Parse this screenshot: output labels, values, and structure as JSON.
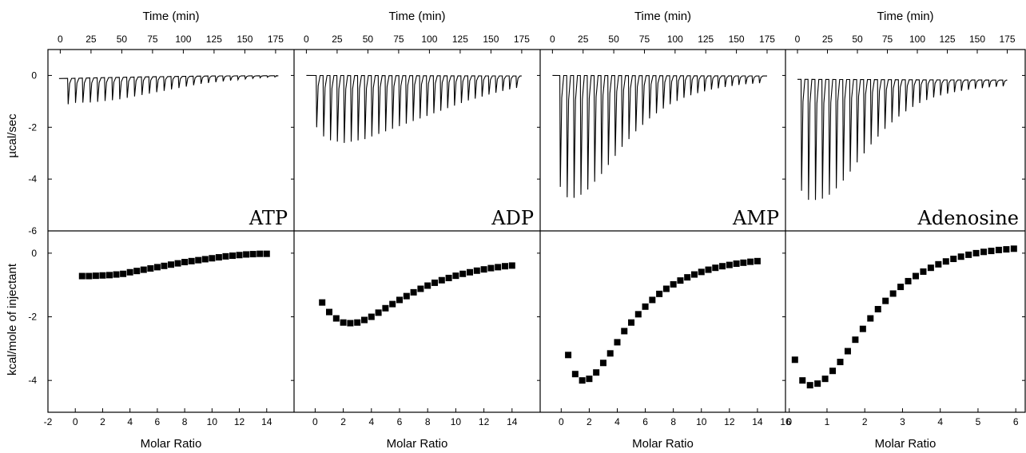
{
  "figure": {
    "top_axis_title": "Time (min)",
    "bottom_axis_title": "Molar Ratio",
    "top_ylabel": "µcal/sec",
    "bottom_ylabel": "kcal/mole of injectant"
  },
  "chart_data": [
    {
      "type": "line",
      "panel": "ATP raw thermogram",
      "label": "ATP",
      "xlabel": "Time (min)",
      "ylabel": "µcal/sec",
      "xlim": [
        -10,
        190
      ],
      "ylim": [
        -6,
        1
      ],
      "x_ticks": [
        0,
        25,
        50,
        75,
        100,
        125,
        150,
        175
      ],
      "x_tick_labels": [
        "0",
        "25",
        "50",
        "75",
        "100",
        "125",
        "150",
        "175"
      ],
      "y_ticks": [
        0,
        -2,
        -4,
        -6
      ],
      "y_tick_labels": [
        "0",
        "-2",
        "-4",
        "-6"
      ],
      "baseline": [
        [
          -1,
          -0.12
        ],
        [
          60,
          -0.06
        ],
        [
          120,
          -0.02
        ],
        [
          175,
          -0.01
        ]
      ],
      "injection_start": 6,
      "injection_interval": 6,
      "peaks": [
        -1.0,
        -0.95,
        -0.95,
        -0.95,
        -0.93,
        -0.9,
        -0.88,
        -0.85,
        -0.8,
        -0.75,
        -0.7,
        -0.65,
        -0.6,
        -0.55,
        -0.5,
        -0.45,
        -0.4,
        -0.35,
        -0.3,
        -0.27,
        -0.24,
        -0.21,
        -0.18,
        -0.15,
        -0.12,
        -0.1,
        -0.08,
        -0.06,
        -0.05
      ]
    },
    {
      "type": "line",
      "panel": "ADP raw thermogram",
      "label": "ADP",
      "xlabel": "Time (min)",
      "xlim": [
        -10,
        190
      ],
      "ylim": [
        -6,
        1
      ],
      "x_ticks": [
        0,
        25,
        50,
        75,
        100,
        125,
        150,
        175
      ],
      "x_tick_labels": [
        "0",
        "25",
        "50",
        "75",
        "100",
        "125",
        "150",
        "175"
      ],
      "baseline": [
        [
          0,
          0
        ],
        [
          175,
          -0.02
        ]
      ],
      "injection_start": 8,
      "injection_interval": 5.6,
      "peaks": [
        -2.0,
        -2.35,
        -2.5,
        -2.55,
        -2.6,
        -2.55,
        -2.5,
        -2.45,
        -2.35,
        -2.25,
        -2.15,
        -2.05,
        -1.95,
        -1.85,
        -1.75,
        -1.65,
        -1.55,
        -1.45,
        -1.35,
        -1.25,
        -1.15,
        -1.05,
        -0.95,
        -0.88,
        -0.8,
        -0.72,
        -0.65,
        -0.58,
        -0.52,
        -0.46
      ]
    },
    {
      "type": "line",
      "panel": "AMP raw thermogram",
      "label": "AMP",
      "xlabel": "Time (min)",
      "xlim": [
        -10,
        190
      ],
      "ylim": [
        -6,
        1
      ],
      "x_ticks": [
        0,
        25,
        50,
        75,
        100,
        125,
        150,
        175
      ],
      "x_tick_labels": [
        "0",
        "25",
        "50",
        "75",
        "100",
        "125",
        "150",
        "175"
      ],
      "baseline": [
        [
          0,
          0
        ],
        [
          175,
          -0.02
        ]
      ],
      "injection_start": 6,
      "injection_interval": 5.6,
      "peaks": [
        -4.3,
        -4.7,
        -4.72,
        -4.6,
        -4.4,
        -4.1,
        -3.8,
        -3.45,
        -3.1,
        -2.75,
        -2.45,
        -2.15,
        -1.9,
        -1.65,
        -1.45,
        -1.27,
        -1.1,
        -0.97,
        -0.85,
        -0.75,
        -0.67,
        -0.6,
        -0.53,
        -0.48,
        -0.43,
        -0.39,
        -0.35,
        -0.32,
        -0.3,
        -0.28
      ]
    },
    {
      "type": "line",
      "panel": "Adenosine raw thermogram",
      "label": "Adenosine",
      "xlabel": "Time (min)",
      "xlim": [
        -10,
        190
      ],
      "ylim": [
        -6,
        1
      ],
      "x_ticks": [
        0,
        25,
        50,
        75,
        100,
        125,
        150,
        175
      ],
      "x_tick_labels": [
        "0",
        "25",
        "50",
        "75",
        "100",
        "125",
        "150",
        "175"
      ],
      "baseline": [
        [
          0,
          -0.15
        ],
        [
          175,
          -0.18
        ]
      ],
      "injection_start": 3,
      "injection_interval": 5.8,
      "peaks": [
        -4.3,
        -4.65,
        -4.65,
        -4.6,
        -4.45,
        -4.2,
        -3.9,
        -3.55,
        -3.2,
        -2.85,
        -2.5,
        -2.2,
        -1.9,
        -1.65,
        -1.42,
        -1.22,
        -1.05,
        -0.9,
        -0.78,
        -0.68,
        -0.6,
        -0.53,
        -0.47,
        -0.42,
        -0.38,
        -0.34,
        -0.31,
        -0.28,
        -0.26,
        -0.24
      ]
    },
    {
      "type": "scatter",
      "panel": "ATP integrated heats",
      "xlabel": "Molar Ratio",
      "ylabel": "kcal/mole of injectant",
      "xlim": [
        -2,
        16
      ],
      "ylim": [
        -5,
        0.7
      ],
      "x_ticks": [
        -2,
        0,
        2,
        4,
        6,
        8,
        10,
        12,
        14
      ],
      "x_tick_labels": [
        "-2",
        "0",
        "2",
        "4",
        "6",
        "8",
        "10",
        "12",
        "14"
      ],
      "y_ticks": [
        0,
        -2,
        -4
      ],
      "y_tick_labels": [
        "0",
        "-2",
        "-4"
      ],
      "x": [
        0.5,
        1.0,
        1.5,
        2.0,
        2.5,
        3.0,
        3.5,
        4.0,
        4.5,
        5.0,
        5.5,
        6.0,
        6.5,
        7.0,
        7.5,
        8.0,
        8.5,
        9.0,
        9.5,
        10.0,
        10.5,
        11.0,
        11.5,
        12.0,
        12.5,
        13.0,
        13.5,
        14.0
      ],
      "y": [
        -0.72,
        -0.72,
        -0.71,
        -0.7,
        -0.69,
        -0.67,
        -0.65,
        -0.6,
        -0.56,
        -0.52,
        -0.48,
        -0.44,
        -0.4,
        -0.36,
        -0.32,
        -0.28,
        -0.25,
        -0.22,
        -0.19,
        -0.16,
        -0.13,
        -0.1,
        -0.08,
        -0.06,
        -0.04,
        -0.03,
        -0.02,
        -0.02
      ]
    },
    {
      "type": "scatter",
      "panel": "ADP integrated heats",
      "xlabel": "Molar Ratio",
      "xlim": [
        -1.5,
        16
      ],
      "ylim": [
        -5,
        0.7
      ],
      "x_ticks": [
        0,
        2,
        4,
        6,
        8,
        10,
        12,
        14
      ],
      "x_tick_labels": [
        "0",
        "2",
        "4",
        "6",
        "8",
        "10",
        "12",
        "14"
      ],
      "x": [
        0.5,
        1.0,
        1.5,
        2.0,
        2.5,
        3.0,
        3.5,
        4.0,
        4.5,
        5.0,
        5.5,
        6.0,
        6.5,
        7.0,
        7.5,
        8.0,
        8.5,
        9.0,
        9.5,
        10.0,
        10.5,
        11.0,
        11.5,
        12.0,
        12.5,
        13.0,
        13.5,
        14.0
      ],
      "y": [
        -1.55,
        -1.85,
        -2.05,
        -2.18,
        -2.2,
        -2.18,
        -2.1,
        -2.0,
        -1.87,
        -1.73,
        -1.6,
        -1.47,
        -1.35,
        -1.23,
        -1.12,
        -1.02,
        -0.93,
        -0.85,
        -0.78,
        -0.71,
        -0.65,
        -0.6,
        -0.55,
        -0.51,
        -0.47,
        -0.44,
        -0.41,
        -0.39
      ]
    },
    {
      "type": "scatter",
      "panel": "AMP integrated heats",
      "xlabel": "Molar Ratio",
      "xlim": [
        -1.5,
        16
      ],
      "ylim": [
        -5,
        0.7
      ],
      "x_ticks": [
        0,
        2,
        4,
        6,
        8,
        10,
        12,
        14,
        16
      ],
      "x_tick_labels": [
        "0",
        "2",
        "4",
        "6",
        "8",
        "10",
        "12",
        "14",
        "16"
      ],
      "x": [
        0.5,
        1.0,
        1.5,
        2.0,
        2.5,
        3.0,
        3.5,
        4.0,
        4.5,
        5.0,
        5.5,
        6.0,
        6.5,
        7.0,
        7.5,
        8.0,
        8.5,
        9.0,
        9.5,
        10.0,
        10.5,
        11.0,
        11.5,
        12.0,
        12.5,
        13.0,
        13.5,
        14.0
      ],
      "y": [
        -3.2,
        -3.8,
        -4.0,
        -3.95,
        -3.75,
        -3.45,
        -3.15,
        -2.8,
        -2.45,
        -2.18,
        -1.92,
        -1.68,
        -1.47,
        -1.28,
        -1.12,
        -0.98,
        -0.86,
        -0.76,
        -0.67,
        -0.59,
        -0.52,
        -0.46,
        -0.41,
        -0.37,
        -0.33,
        -0.3,
        -0.27,
        -0.25
      ]
    },
    {
      "type": "scatter",
      "panel": "Adenosine integrated heats",
      "xlabel": "Molar Ratio",
      "xlim": [
        -0.1,
        6.25
      ],
      "ylim": [
        -5,
        0.7
      ],
      "x_ticks": [
        0,
        1,
        2,
        3,
        4,
        5,
        6
      ],
      "x_tick_labels": [
        "0",
        "1",
        "2",
        "3",
        "4",
        "5",
        "6"
      ],
      "x": [
        0.15,
        0.35,
        0.55,
        0.75,
        0.95,
        1.15,
        1.35,
        1.55,
        1.75,
        1.95,
        2.15,
        2.35,
        2.55,
        2.75,
        2.95,
        3.15,
        3.35,
        3.55,
        3.75,
        3.95,
        4.15,
        4.35,
        4.55,
        4.75,
        4.95,
        5.15,
        5.35,
        5.55,
        5.75,
        5.95
      ],
      "y": [
        -3.35,
        -4.0,
        -4.15,
        -4.1,
        -3.95,
        -3.7,
        -3.42,
        -3.08,
        -2.72,
        -2.38,
        -2.05,
        -1.76,
        -1.5,
        -1.27,
        -1.06,
        -0.88,
        -0.72,
        -0.58,
        -0.46,
        -0.35,
        -0.26,
        -0.18,
        -0.11,
        -0.05,
        0.0,
        0.04,
        0.07,
        0.1,
        0.12,
        0.14
      ]
    }
  ]
}
